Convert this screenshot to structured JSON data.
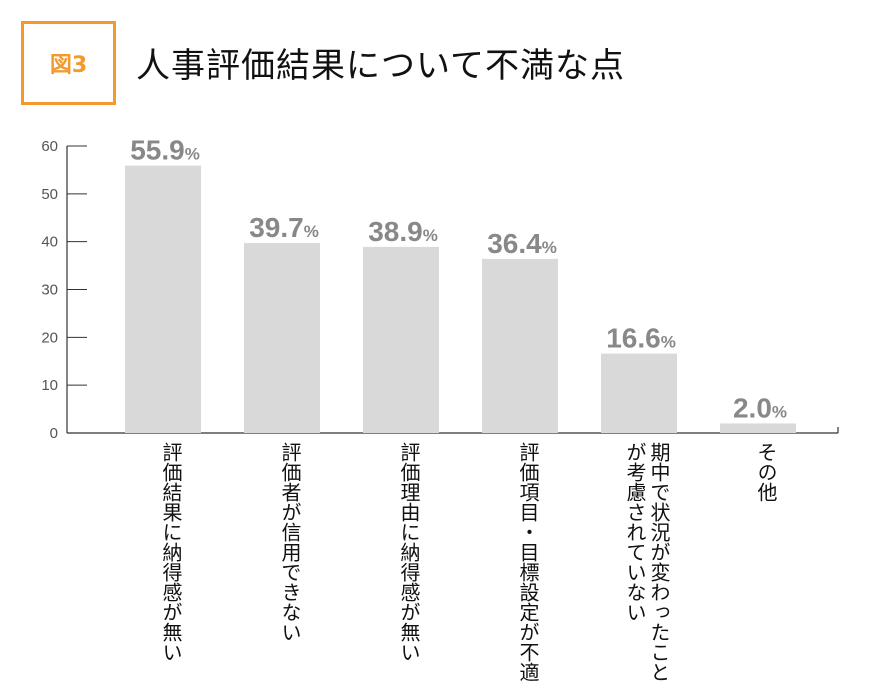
{
  "figure_label": "図3",
  "chart_data": {
    "type": "bar",
    "title": "人事評価結果について不満な点",
    "categories": [
      "評価結果に納得感が無い",
      "評価者が信用できない",
      "評価理由に納得感が無い",
      "評価項目・目標設定が不適切",
      "期中で状況が変わったことが考慮されていない",
      "その他"
    ],
    "values": [
      55.9,
      39.7,
      38.9,
      36.4,
      16.6,
      2.0
    ],
    "value_labels": [
      "55.9",
      "39.7",
      "38.9",
      "36.4",
      "16.6",
      "2.0"
    ],
    "unit": "%",
    "ylim": [
      0,
      60
    ],
    "yticks": [
      "0",
      "10",
      "20",
      "30",
      "40",
      "50",
      "60"
    ],
    "bar_color": "#d9d9d9",
    "accent_color": "#f29a2e",
    "grid": false
  }
}
